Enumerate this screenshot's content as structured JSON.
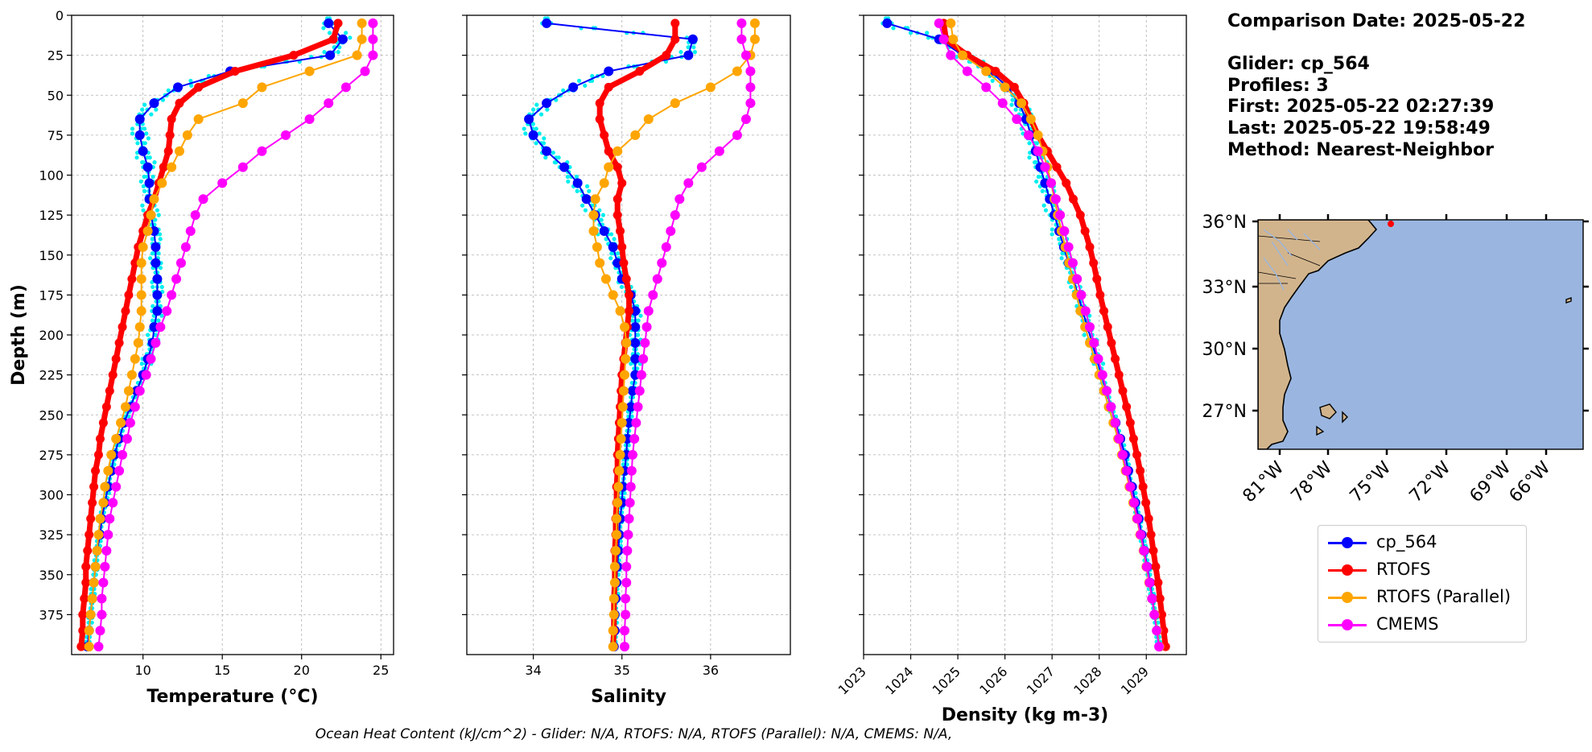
{
  "info": {
    "comparison_date": "Comparison Date: 2025-05-22",
    "glider": "Glider: cp_564",
    "profiles": "Profiles: 3",
    "first": "First: 2025-05-22 02:27:39",
    "last": "Last: 2025-05-22 19:58:49",
    "method": "Method: Nearest-Neighbor"
  },
  "footer": "Ocean Heat Content (kJ/cm^2) - Glider: N/A,  RTOFS: N/A,  RTOFS (Parallel): N/A,  CMEMS: N/A,",
  "colors": {
    "glider": "#0000ff",
    "glider_scatter": "#00eeee",
    "rtofs": "#ff0000",
    "rtofs_parallel": "#ffa500",
    "cmems": "#ff00ff",
    "land": "#d2b48c",
    "ocean": "#9ab6e0",
    "grid": "#b0b0b0"
  },
  "legend": [
    {
      "label": "cp_564",
      "color": "#0000ff"
    },
    {
      "label": "RTOFS",
      "color": "#ff0000"
    },
    {
      "label": "RTOFS (Parallel)",
      "color": "#ffa500"
    },
    {
      "label": "CMEMS",
      "color": "#ff00ff"
    }
  ],
  "map": {
    "lat_labels": [
      "36°N",
      "33°N",
      "30°N",
      "27°N"
    ],
    "lon_labels": [
      "81°W",
      "78°W",
      "75°W",
      "72°W",
      "69°W",
      "66°W"
    ]
  },
  "chart_data": [
    {
      "type": "line",
      "xlabel": "Temperature (°C)",
      "ylabel": "Depth (m)",
      "xlim": [
        5.5,
        25.8
      ],
      "ylim": [
        400,
        0
      ],
      "xticks": [
        "10",
        "15",
        "20",
        "25"
      ],
      "yticks": [
        "0",
        "25",
        "50",
        "75",
        "100",
        "125",
        "150",
        "175",
        "200",
        "225",
        "250",
        "275",
        "300",
        "325",
        "350",
        "375"
      ],
      "grid": true,
      "depth": [
        5,
        15,
        25,
        35,
        45,
        55,
        65,
        75,
        85,
        95,
        105,
        115,
        125,
        135,
        145,
        155,
        165,
        175,
        185,
        195,
        205,
        215,
        225,
        235,
        245,
        255,
        265,
        275,
        285,
        295,
        305,
        315,
        325,
        335,
        345,
        355,
        365,
        375,
        385,
        395
      ],
      "series": [
        {
          "name": "cp_564",
          "values": [
            21.7,
            22.6,
            21.8,
            15.5,
            12.2,
            10.7,
            9.8,
            9.8,
            10.0,
            10.3,
            10.4,
            10.4,
            10.5,
            10.7,
            10.8,
            10.8,
            10.9,
            10.9,
            10.9,
            10.7,
            10.6,
            10.3,
            10.0,
            9.6,
            9.2,
            8.8,
            8.5,
            8.2,
            8.0,
            7.8,
            7.6,
            7.4,
            7.3,
            7.1,
            7.0,
            6.9,
            6.8,
            6.7,
            6.6,
            6.5
          ]
        },
        {
          "name": "RTOFS",
          "values": [
            22.3,
            22.0,
            19.5,
            15.8,
            13.5,
            12.3,
            11.8,
            11.7,
            11.6,
            11.3,
            11.0,
            10.7,
            10.3,
            10.0,
            9.7,
            9.5,
            9.3,
            9.1,
            8.9,
            8.7,
            8.5,
            8.3,
            8.1,
            7.9,
            7.7,
            7.5,
            7.3,
            7.2,
            7.0,
            6.9,
            6.8,
            6.7,
            6.6,
            6.5,
            6.4,
            6.4,
            6.3,
            6.2,
            6.2,
            6.1
          ]
        },
        {
          "name": "RTOFS (Parallel)",
          "values": [
            23.8,
            23.8,
            23.5,
            20.5,
            17.5,
            16.3,
            13.5,
            12.8,
            12.3,
            11.8,
            11.2,
            10.7,
            10.5,
            10.3,
            10.0,
            9.9,
            9.9,
            9.9,
            9.9,
            9.8,
            9.7,
            9.5,
            9.3,
            9.1,
            8.9,
            8.6,
            8.3,
            8.0,
            7.8,
            7.6,
            7.5,
            7.3,
            7.2,
            7.1,
            7.0,
            6.9,
            6.8,
            6.7,
            6.6,
            6.6
          ]
        },
        {
          "name": "CMEMS",
          "values": [
            24.5,
            24.5,
            24.5,
            24.0,
            22.8,
            21.7,
            20.5,
            19.0,
            17.5,
            16.3,
            15.0,
            13.8,
            13.3,
            13.0,
            12.7,
            12.4,
            12.1,
            11.8,
            11.5,
            11.1,
            10.8,
            10.5,
            10.2,
            9.8,
            9.5,
            9.2,
            9.0,
            8.7,
            8.5,
            8.3,
            8.1,
            7.9,
            7.8,
            7.7,
            7.6,
            7.5,
            7.4,
            7.4,
            7.3,
            7.2
          ]
        }
      ]
    },
    {
      "type": "line",
      "xlabel": "Salinity",
      "xlim": [
        33.25,
        36.9
      ],
      "ylim": [
        400,
        0
      ],
      "xticks": [
        "34",
        "35",
        "36"
      ],
      "grid": true,
      "depth": [
        5,
        15,
        25,
        35,
        45,
        55,
        65,
        75,
        85,
        95,
        105,
        115,
        125,
        135,
        145,
        155,
        165,
        175,
        185,
        195,
        205,
        215,
        225,
        235,
        245,
        255,
        265,
        275,
        285,
        295,
        305,
        315,
        325,
        335,
        345,
        355,
        365,
        375,
        385,
        395
      ],
      "series": [
        {
          "name": "cp_564",
          "values": [
            34.15,
            35.8,
            35.75,
            34.85,
            34.45,
            34.15,
            33.95,
            34.0,
            34.15,
            34.35,
            34.5,
            34.6,
            34.7,
            34.8,
            34.9,
            34.95,
            35.0,
            35.1,
            35.15,
            35.15,
            35.15,
            35.15,
            35.15,
            35.12,
            35.1,
            35.08,
            35.06,
            35.05,
            35.03,
            35.01,
            35.0,
            34.98,
            34.97,
            34.96,
            34.95,
            34.94,
            34.93,
            34.92,
            34.92,
            34.91
          ]
        },
        {
          "name": "RTOFS",
          "values": [
            35.6,
            35.6,
            35.5,
            35.2,
            34.85,
            34.75,
            34.75,
            34.8,
            34.85,
            34.95,
            35.0,
            34.95,
            34.95,
            34.98,
            35.0,
            35.02,
            35.05,
            35.08,
            35.08,
            35.06,
            35.04,
            35.02,
            35.0,
            34.99,
            34.98,
            34.97,
            34.96,
            34.95,
            34.95,
            34.94,
            34.94,
            34.93,
            34.93,
            34.92,
            34.92,
            34.92,
            34.91,
            34.91,
            34.91,
            34.9
          ]
        },
        {
          "name": "RTOFS (Parallel)",
          "values": [
            36.5,
            36.5,
            36.45,
            36.3,
            36.0,
            35.6,
            35.3,
            35.15,
            34.95,
            34.85,
            34.8,
            34.7,
            34.68,
            34.68,
            34.72,
            34.75,
            34.82,
            34.9,
            34.98,
            35.03,
            35.05,
            35.04,
            35.03,
            35.02,
            35.01,
            35.0,
            34.99,
            34.98,
            34.97,
            34.96,
            34.95,
            34.94,
            34.94,
            34.93,
            34.92,
            34.92,
            34.91,
            34.91,
            34.9,
            34.9
          ]
        },
        {
          "name": "CMEMS",
          "values": [
            36.35,
            36.35,
            36.4,
            36.45,
            36.45,
            36.45,
            36.4,
            36.3,
            36.1,
            35.9,
            35.75,
            35.65,
            35.6,
            35.55,
            35.5,
            35.45,
            35.4,
            35.35,
            35.3,
            35.28,
            35.26,
            35.24,
            35.22,
            35.2,
            35.18,
            35.16,
            35.14,
            35.12,
            35.11,
            35.1,
            35.09,
            35.08,
            35.07,
            35.06,
            35.05,
            35.05,
            35.04,
            35.04,
            35.03,
            35.03
          ]
        }
      ]
    },
    {
      "type": "line",
      "xlabel": "Density (kg m-3)",
      "xlim": [
        1023.0,
        1029.85
      ],
      "ylim": [
        400,
        0
      ],
      "xticks": [
        "1023",
        "1024",
        "1025",
        "1026",
        "1027",
        "1028",
        "1029"
      ],
      "grid": true,
      "depth": [
        5,
        15,
        25,
        35,
        45,
        55,
        65,
        75,
        85,
        95,
        105,
        115,
        125,
        135,
        145,
        155,
        165,
        175,
        185,
        195,
        205,
        215,
        225,
        235,
        245,
        255,
        265,
        275,
        285,
        295,
        305,
        315,
        325,
        335,
        345,
        355,
        365,
        375,
        385,
        395
      ],
      "series": [
        {
          "name": "cp_564",
          "values": [
            1023.5,
            1024.6,
            1025.1,
            1025.7,
            1026.05,
            1026.3,
            1026.45,
            1026.55,
            1026.65,
            1026.75,
            1026.85,
            1026.95,
            1027.05,
            1027.15,
            1027.25,
            1027.35,
            1027.45,
            1027.55,
            1027.65,
            1027.75,
            1027.85,
            1027.95,
            1028.05,
            1028.15,
            1028.25,
            1028.35,
            1028.45,
            1028.55,
            1028.62,
            1028.7,
            1028.77,
            1028.84,
            1028.9,
            1028.96,
            1029.02,
            1029.08,
            1029.13,
            1029.18,
            1029.23,
            1029.28
          ]
        },
        {
          "name": "RTOFS",
          "values": [
            1024.7,
            1024.75,
            1025.2,
            1025.8,
            1026.2,
            1026.4,
            1026.55,
            1026.7,
            1026.9,
            1027.1,
            1027.3,
            1027.45,
            1027.6,
            1027.7,
            1027.8,
            1027.88,
            1027.95,
            1028.02,
            1028.1,
            1028.18,
            1028.26,
            1028.34,
            1028.42,
            1028.5,
            1028.58,
            1028.66,
            1028.73,
            1028.8,
            1028.87,
            1028.93,
            1028.99,
            1029.05,
            1029.1,
            1029.15,
            1029.2,
            1029.25,
            1029.29,
            1029.33,
            1029.37,
            1029.41
          ]
        },
        {
          "name": "RTOFS (Parallel)",
          "values": [
            1024.85,
            1024.9,
            1025.1,
            1025.6,
            1026.0,
            1026.35,
            1026.55,
            1026.7,
            1026.8,
            1026.9,
            1026.98,
            1027.05,
            1027.12,
            1027.2,
            1027.28,
            1027.36,
            1027.44,
            1027.52,
            1027.6,
            1027.7,
            1027.8,
            1027.9,
            1028.0,
            1028.1,
            1028.2,
            1028.3,
            1028.4,
            1028.48,
            1028.56,
            1028.64,
            1028.72,
            1028.8,
            1028.87,
            1028.94,
            1029.0,
            1029.06,
            1029.12,
            1029.18,
            1029.23,
            1029.28
          ]
        },
        {
          "name": "CMEMS",
          "values": [
            1024.6,
            1024.7,
            1024.85,
            1025.2,
            1025.6,
            1025.95,
            1026.25,
            1026.5,
            1026.7,
            1026.85,
            1026.98,
            1027.08,
            1027.17,
            1027.26,
            1027.35,
            1027.44,
            1027.53,
            1027.62,
            1027.71,
            1027.8,
            1027.89,
            1027.98,
            1028.07,
            1028.16,
            1028.25,
            1028.34,
            1028.42,
            1028.5,
            1028.58,
            1028.66,
            1028.74,
            1028.81,
            1028.88,
            1028.95,
            1029.01,
            1029.07,
            1029.12,
            1029.17,
            1029.22,
            1029.27
          ]
        }
      ]
    }
  ]
}
